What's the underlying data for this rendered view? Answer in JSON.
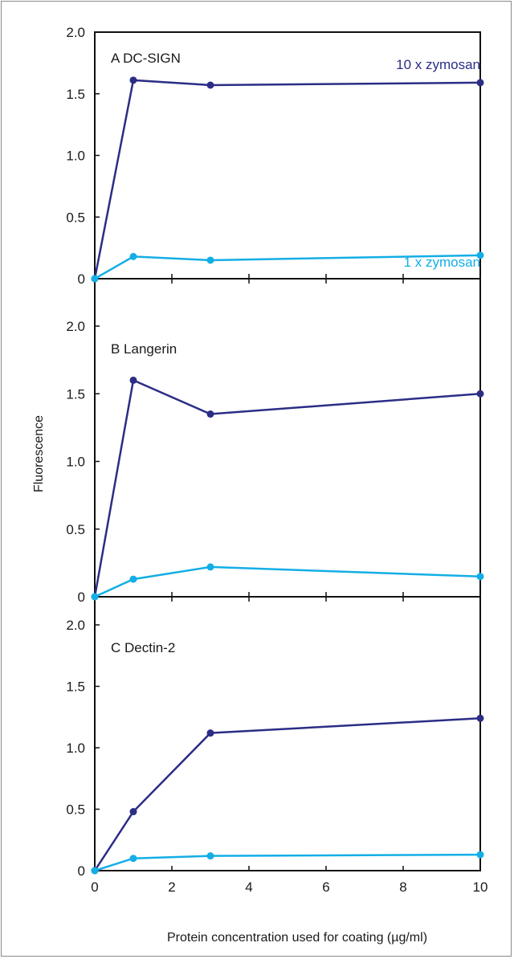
{
  "chart_data": {
    "type": "line",
    "ylabel": "Fluorescence",
    "xlabel": "Protein concentration used for coating (µg/ml)",
    "xlim": [
      0,
      10
    ],
    "ylim": [
      0,
      2.0
    ],
    "x_ticks": [
      "0",
      "2",
      "4",
      "6",
      "8",
      "10"
    ],
    "grid": false,
    "colors": {
      "high": "#2b2d86",
      "low": "#14aee6"
    },
    "panels": [
      {
        "title": "A  DC-SIGN",
        "y_ticks": [
          "0",
          "0.5",
          "1.0",
          "1.5",
          "2.0"
        ],
        "series_labels": {
          "high": "10 x zymosan",
          "low": "1 x zymosan"
        },
        "x": [
          0,
          1,
          3,
          10
        ],
        "series": [
          {
            "name": "10 x zymosan",
            "key": "high",
            "values": [
              0.0,
              1.61,
              1.57,
              1.59
            ]
          },
          {
            "name": "1 x zymosan",
            "key": "low",
            "values": [
              0.0,
              0.18,
              0.15,
              0.19
            ]
          }
        ]
      },
      {
        "title": "B  Langerin",
        "y_ticks": [
          "0",
          "0.5",
          "1.0",
          "1.5",
          "2.0"
        ],
        "x": [
          0,
          1,
          3,
          10
        ],
        "series": [
          {
            "key": "high",
            "values": [
              0.0,
              1.6,
              1.35,
              1.5
            ]
          },
          {
            "key": "low",
            "values": [
              0.0,
              0.13,
              0.22,
              0.15
            ]
          }
        ]
      },
      {
        "title": "C  Dectin-2",
        "y_ticks": [
          "0",
          "0.5",
          "1.0",
          "1.5",
          "2.0"
        ],
        "x": [
          0,
          1,
          3,
          10
        ],
        "series": [
          {
            "key": "high",
            "values": [
              0.0,
              0.48,
              1.12,
              1.24
            ]
          },
          {
            "key": "low",
            "values": [
              0.0,
              0.1,
              0.12,
              0.13
            ]
          }
        ]
      }
    ]
  }
}
